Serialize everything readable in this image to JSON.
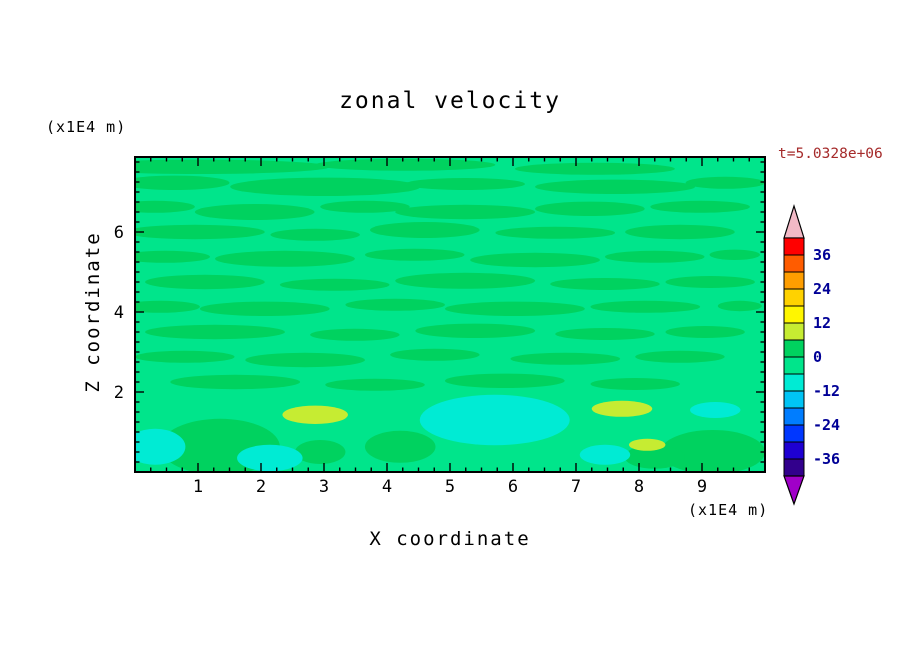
{
  "title": "zonal velocity",
  "labels": {
    "time": "t=5.0328e+06",
    "y_unit": "(x1E4 m)",
    "x_unit": "(x1E4 m)",
    "x_title": "X coordinate",
    "y_title": "Z coordinate"
  },
  "colors": {
    "time_label": "#a52a2a",
    "colorbar_tick": "#000096",
    "axis": "#000000",
    "frame": "#000000"
  },
  "axes": {
    "x": {
      "min": 0,
      "max": 10,
      "major_ticks": [
        1,
        2,
        3,
        4,
        5,
        6,
        7,
        8,
        9
      ],
      "minor_step": 0.25
    },
    "y": {
      "min": 0,
      "max": 7.875,
      "major_ticks": [
        2,
        4,
        6
      ],
      "minor_step": 0.25
    }
  },
  "colorbar": {
    "arrow_top_color": "#f2b9c6",
    "arrow_bottom_color": "#a000c8",
    "segments_top_to_bottom": [
      "#ff0000",
      "#ff5c00",
      "#ff9e00",
      "#ffd200",
      "#fff600",
      "#c6ec32",
      "#00d25f",
      "#00e58b",
      "#00ebd4",
      "#00c4f5",
      "#007dff",
      "#0037ff",
      "#1e00d2",
      "#32008c"
    ],
    "ticks": [
      {
        "label": "36",
        "pos": 1
      },
      {
        "label": "24",
        "pos": 3
      },
      {
        "label": "12",
        "pos": 5
      },
      {
        "label": "0",
        "pos": 7
      },
      {
        "label": "-12",
        "pos": 9
      },
      {
        "label": "-24",
        "pos": 11
      },
      {
        "label": "-36",
        "pos": 13
      }
    ]
  },
  "chart_data": {
    "type": "heatmap",
    "subtype": "filled-contour",
    "title": "zonal velocity",
    "xlabel": "X coordinate (x1E4 m)",
    "ylabel": "Z coordinate (x1E4 m)",
    "time_annotation": "t=5.0328e+06",
    "x_range": [
      0,
      10
    ],
    "z_range": [
      0,
      7.875
    ],
    "value_range": [
      -42,
      42
    ],
    "contour_interval": 6,
    "background_band": "-6..0 (spring green, dominant field value)",
    "palette": {
      "background": "#00e58b",
      "green2": "#00d25f",
      "aqua": "#00ebd4",
      "yellow": "#c6ec32"
    },
    "band_meaning": {
      "green2": "0..6",
      "aqua": "-12..-6",
      "yellow": "6..12"
    },
    "feature_format": [
      "x",
      "z",
      "rx",
      "rz",
      "band"
    ],
    "features": [
      [
        1.03,
        7.63,
        2.06,
        0.18,
        "green2"
      ],
      [
        4.29,
        7.68,
        1.43,
        0.15,
        "green2"
      ],
      [
        7.3,
        7.58,
        1.27,
        0.15,
        "green2"
      ],
      [
        0.63,
        7.23,
        0.87,
        0.18,
        "green2"
      ],
      [
        3.02,
        7.13,
        1.51,
        0.23,
        "green2"
      ],
      [
        5.24,
        7.2,
        0.95,
        0.15,
        "green2"
      ],
      [
        7.62,
        7.13,
        1.27,
        0.18,
        "green2"
      ],
      [
        9.37,
        7.23,
        0.63,
        0.15,
        "green2"
      ],
      [
        0.32,
        6.63,
        0.63,
        0.15,
        "green2"
      ],
      [
        1.9,
        6.5,
        0.95,
        0.2,
        "green2"
      ],
      [
        3.65,
        6.63,
        0.71,
        0.15,
        "green2"
      ],
      [
        5.24,
        6.5,
        1.11,
        0.18,
        "green2"
      ],
      [
        7.22,
        6.58,
        0.87,
        0.18,
        "green2"
      ],
      [
        8.97,
        6.63,
        0.79,
        0.15,
        "green2"
      ],
      [
        0.95,
        6.0,
        1.11,
        0.18,
        "green2"
      ],
      [
        2.86,
        5.93,
        0.71,
        0.15,
        "green2"
      ],
      [
        4.6,
        6.05,
        0.87,
        0.2,
        "green2"
      ],
      [
        6.67,
        5.98,
        0.95,
        0.15,
        "green2"
      ],
      [
        8.65,
        6.0,
        0.87,
        0.18,
        "green2"
      ],
      [
        0.48,
        5.38,
        0.71,
        0.15,
        "green2"
      ],
      [
        2.38,
        5.33,
        1.11,
        0.2,
        "green2"
      ],
      [
        4.44,
        5.43,
        0.79,
        0.15,
        "green2"
      ],
      [
        6.35,
        5.3,
        1.03,
        0.18,
        "green2"
      ],
      [
        8.25,
        5.38,
        0.79,
        0.15,
        "green2"
      ],
      [
        9.52,
        5.43,
        0.4,
        0.13,
        "green2"
      ],
      [
        1.11,
        4.75,
        0.95,
        0.18,
        "green2"
      ],
      [
        3.17,
        4.68,
        0.87,
        0.15,
        "green2"
      ],
      [
        5.24,
        4.78,
        1.11,
        0.2,
        "green2"
      ],
      [
        7.46,
        4.7,
        0.87,
        0.15,
        "green2"
      ],
      [
        9.13,
        4.75,
        0.71,
        0.15,
        "green2"
      ],
      [
        0.4,
        4.13,
        0.63,
        0.15,
        "green2"
      ],
      [
        2.06,
        4.08,
        1.03,
        0.18,
        "green2"
      ],
      [
        4.13,
        4.18,
        0.79,
        0.15,
        "green2"
      ],
      [
        6.03,
        4.08,
        1.11,
        0.18,
        "green2"
      ],
      [
        8.1,
        4.13,
        0.87,
        0.15,
        "green2"
      ],
      [
        9.6,
        4.15,
        0.35,
        0.13,
        "green2"
      ],
      [
        1.27,
        3.5,
        1.11,
        0.18,
        "green2"
      ],
      [
        3.49,
        3.43,
        0.71,
        0.15,
        "green2"
      ],
      [
        5.4,
        3.53,
        0.95,
        0.18,
        "green2"
      ],
      [
        7.46,
        3.45,
        0.79,
        0.15,
        "green2"
      ],
      [
        9.05,
        3.5,
        0.63,
        0.15,
        "green2"
      ],
      [
        0.79,
        2.88,
        0.79,
        0.15,
        "green2"
      ],
      [
        2.7,
        2.8,
        0.95,
        0.18,
        "green2"
      ],
      [
        4.76,
        2.93,
        0.71,
        0.15,
        "green2"
      ],
      [
        6.83,
        2.83,
        0.87,
        0.15,
        "green2"
      ],
      [
        8.65,
        2.88,
        0.71,
        0.15,
        "green2"
      ],
      [
        1.59,
        2.25,
        1.03,
        0.18,
        "green2"
      ],
      [
        3.81,
        2.18,
        0.79,
        0.15,
        "green2"
      ],
      [
        5.87,
        2.28,
        0.95,
        0.18,
        "green2"
      ],
      [
        7.94,
        2.2,
        0.71,
        0.15,
        "green2"
      ],
      [
        1.35,
        0.63,
        0.95,
        0.7,
        "green2"
      ],
      [
        2.94,
        0.5,
        0.4,
        0.3,
        "green2"
      ],
      [
        4.21,
        0.63,
        0.56,
        0.4,
        "green2"
      ],
      [
        9.17,
        0.5,
        0.83,
        0.55,
        "green2"
      ],
      [
        8.25,
        0.38,
        0.48,
        0.3,
        "green2"
      ],
      [
        5.71,
        1.3,
        1.19,
        0.63,
        "aqua"
      ],
      [
        0.32,
        0.63,
        0.48,
        0.45,
        "aqua"
      ],
      [
        2.14,
        0.35,
        0.52,
        0.33,
        "aqua"
      ],
      [
        7.46,
        0.43,
        0.4,
        0.25,
        "aqua"
      ],
      [
        9.21,
        1.55,
        0.4,
        0.2,
        "aqua"
      ],
      [
        2.86,
        1.43,
        0.52,
        0.23,
        "yellow"
      ],
      [
        7.73,
        1.58,
        0.48,
        0.2,
        "yellow"
      ],
      [
        8.13,
        0.68,
        0.29,
        0.15,
        "yellow"
      ]
    ]
  }
}
